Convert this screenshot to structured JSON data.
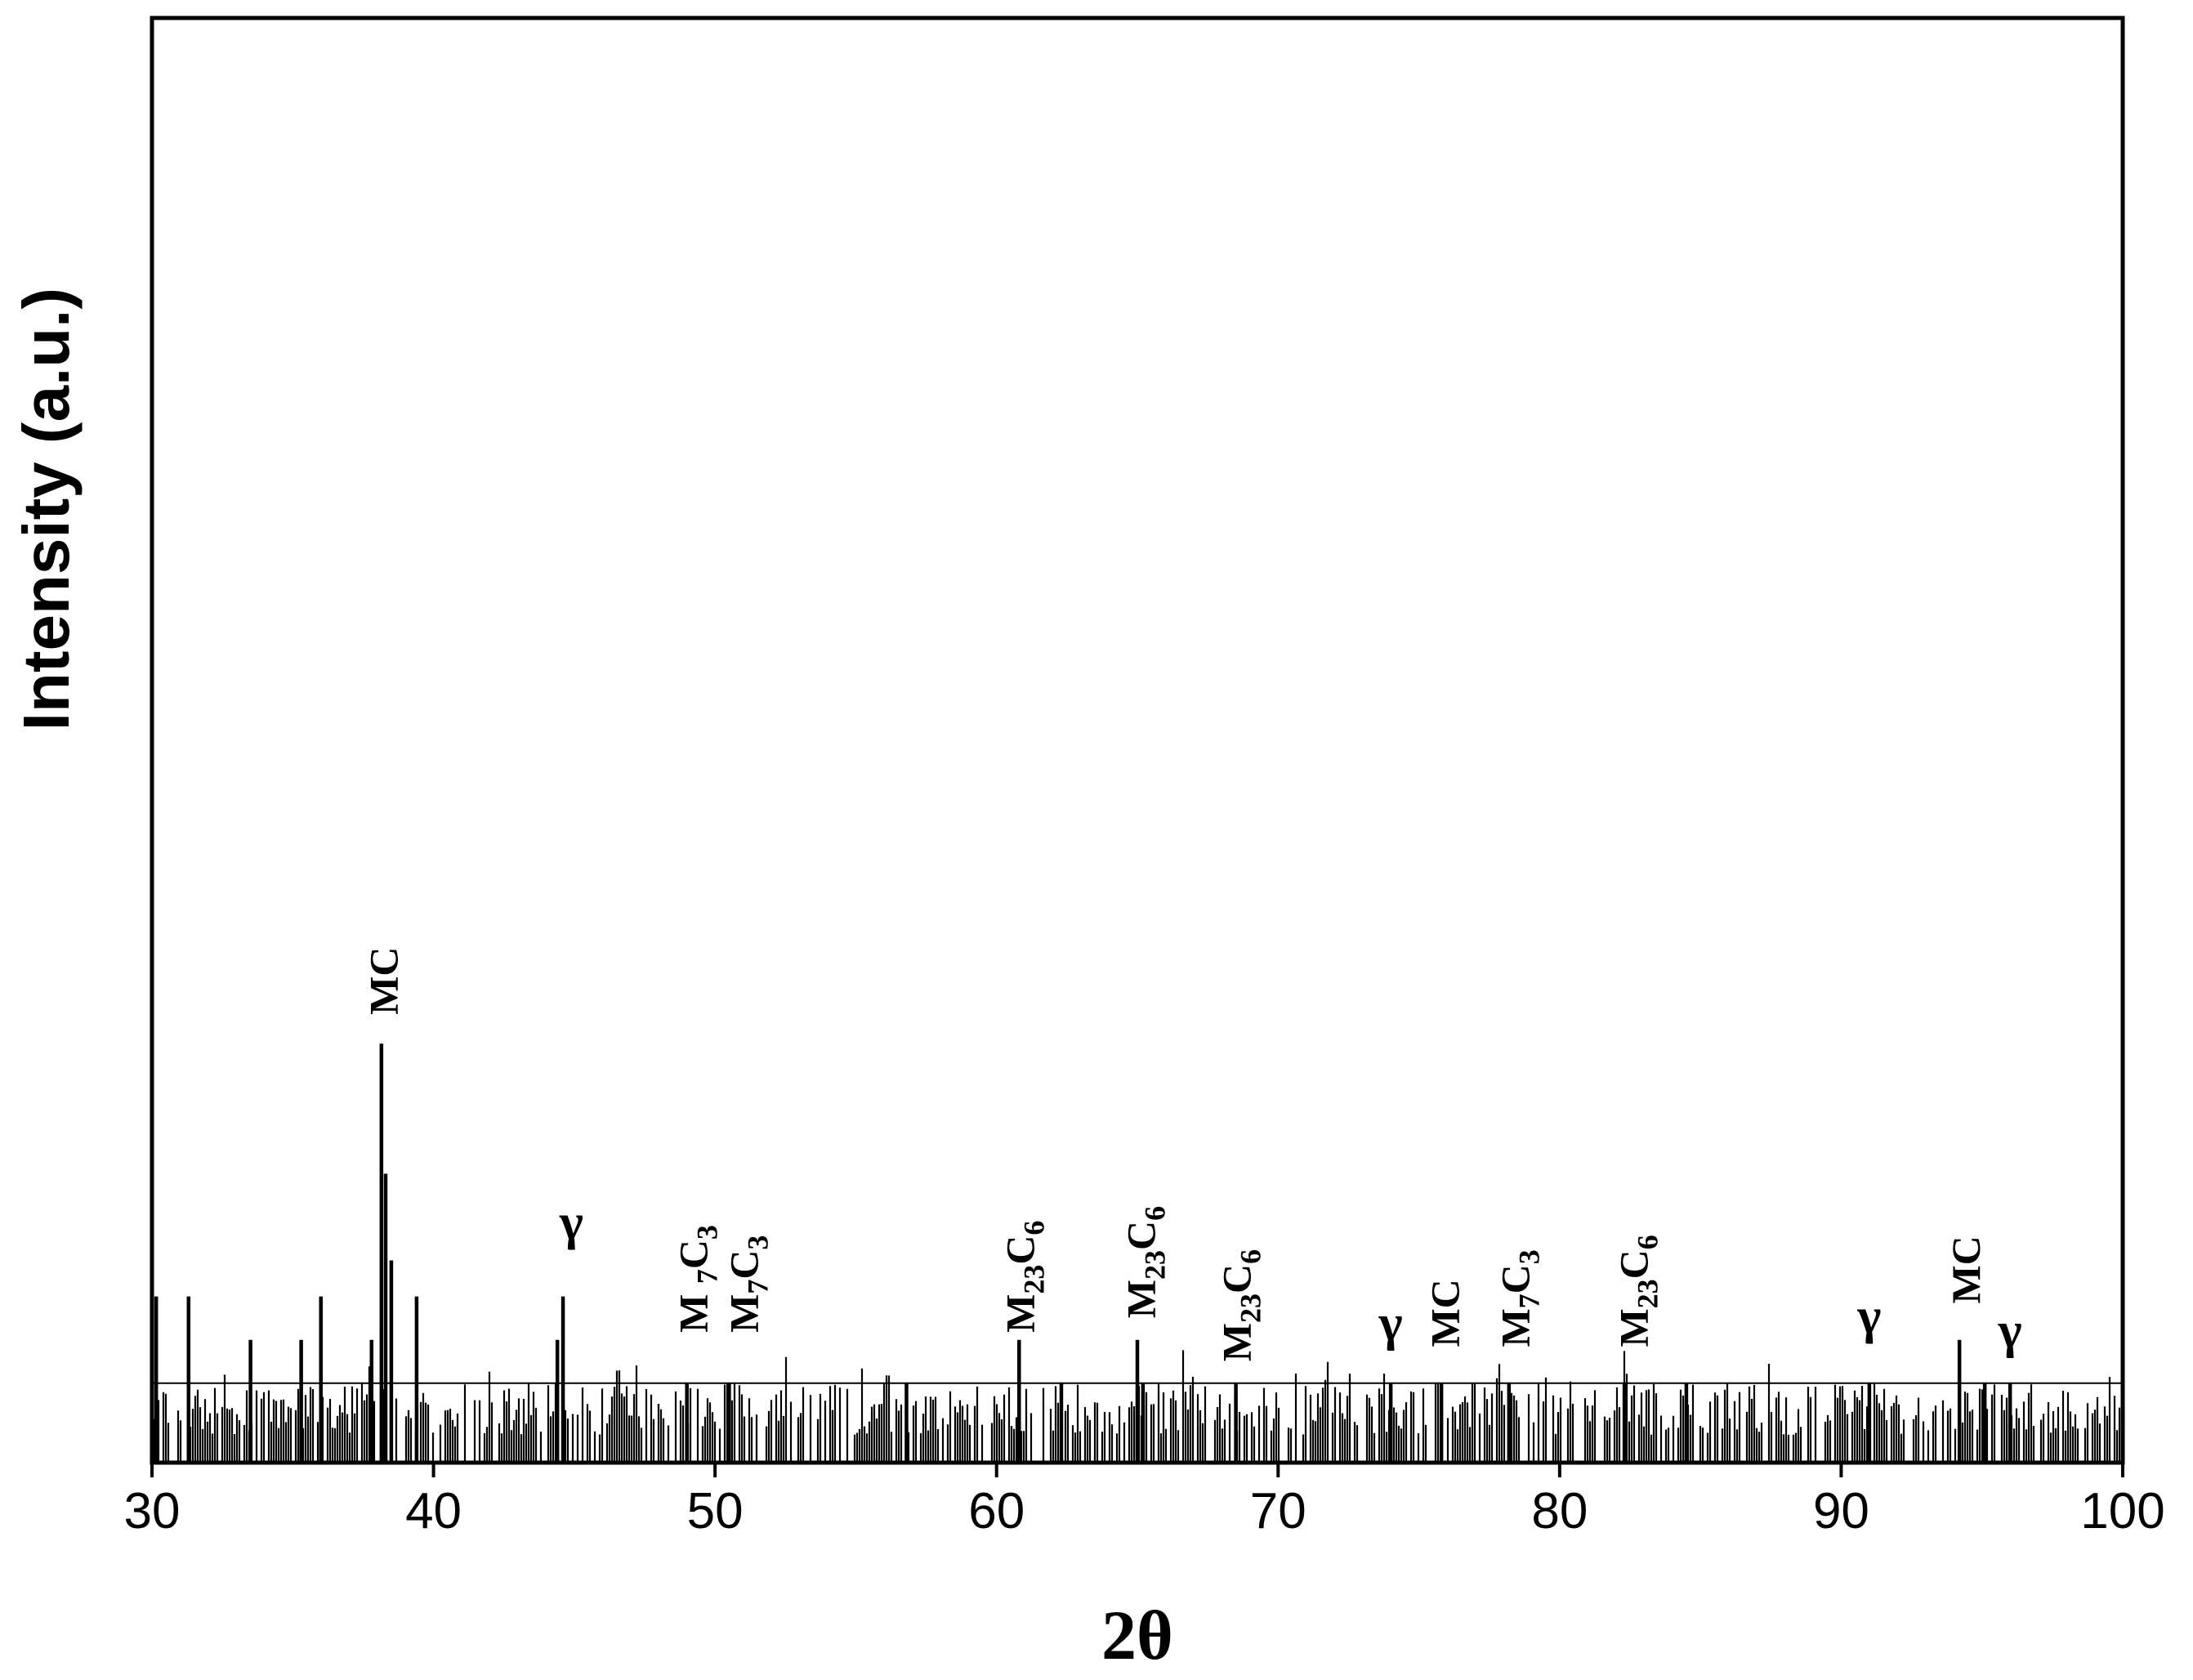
{
  "chart_data": {
    "type": "line",
    "title": "",
    "xlabel": "2θ",
    "ylabel": "Intensity (a.u.)",
    "xlim": [
      30,
      100
    ],
    "x_ticks": [
      30,
      40,
      50,
      60,
      70,
      80,
      90,
      100
    ],
    "y_ticks": [],
    "grid": false,
    "legend": "none",
    "baseline": 0.055,
    "noise_amplitude": 0.03,
    "series": [
      {
        "peaks": [
          {
            "x": 30.15,
            "y": 0.115
          },
          {
            "x": 31.3,
            "y": 0.115
          },
          {
            "x": 33.5,
            "y": 0.085
          },
          {
            "x": 35.3,
            "y": 0.085
          },
          {
            "x": 36.0,
            "y": 0.115
          },
          {
            "x": 37.8,
            "y": 0.085
          },
          {
            "x": 38.15,
            "y": 0.29
          },
          {
            "x": 38.3,
            "y": 0.2
          },
          {
            "x": 38.5,
            "y": 0.14
          },
          {
            "x": 39.4,
            "y": 0.115
          },
          {
            "x": 44.4,
            "y": 0.085
          },
          {
            "x": 44.6,
            "y": 0.115
          },
          {
            "x": 49.0,
            "y": 0.055
          },
          {
            "x": 50.5,
            "y": 0.055
          },
          {
            "x": 56.8,
            "y": 0.055
          },
          {
            "x": 60.8,
            "y": 0.085
          },
          {
            "x": 62.3,
            "y": 0.055
          },
          {
            "x": 65.0,
            "y": 0.085
          },
          {
            "x": 65.2,
            "y": 0.055
          },
          {
            "x": 68.5,
            "y": 0.055
          },
          {
            "x": 74.0,
            "y": 0.055
          },
          {
            "x": 75.8,
            "y": 0.055
          },
          {
            "x": 78.2,
            "y": 0.055
          },
          {
            "x": 82.3,
            "y": 0.055
          },
          {
            "x": 84.5,
            "y": 0.055
          },
          {
            "x": 91.0,
            "y": 0.055
          },
          {
            "x": 94.2,
            "y": 0.085
          },
          {
            "x": 95.1,
            "y": 0.055
          },
          {
            "x": 96.0,
            "y": 0.055
          }
        ]
      }
    ],
    "annotations": [
      {
        "text": "MC",
        "x": 38.2,
        "y": 0.31,
        "rotated": true
      },
      {
        "text": "γ",
        "x": 44.9,
        "y": 0.155,
        "rotated": false
      },
      {
        "text": "M 7C3",
        "x": 49.2,
        "y": 0.09,
        "rotated": true,
        "main": "M ",
        "sub1": "7",
        "mid": "C",
        "sub2": "3"
      },
      {
        "text": "M7C3",
        "x": 51.0,
        "y": 0.09,
        "rotated": true,
        "main": "M",
        "sub1": "7",
        "mid": "C",
        "sub2": "3"
      },
      {
        "text": "M23C6",
        "x": 60.8,
        "y": 0.09,
        "rotated": true,
        "main": "M",
        "sub1": "23",
        "mid": "C",
        "sub2": "6"
      },
      {
        "text": "M23C6",
        "x": 65.1,
        "y": 0.1,
        "rotated": true,
        "main": "M",
        "sub1": "23",
        "mid": "C",
        "sub2": "6"
      },
      {
        "text": "M23C6",
        "x": 68.5,
        "y": 0.07,
        "rotated": true,
        "main": "M",
        "sub1": "23",
        "mid": "C",
        "sub2": "6"
      },
      {
        "text": "γ",
        "x": 74.0,
        "y": 0.085,
        "rotated": false
      },
      {
        "text": "MC",
        "x": 75.9,
        "y": 0.08,
        "rotated": true
      },
      {
        "text": "M7C3",
        "x": 78.4,
        "y": 0.08,
        "rotated": true,
        "main": "M",
        "sub1": "7",
        "mid": "C",
        "sub2": "3"
      },
      {
        "text": "M23C6",
        "x": 82.6,
        "y": 0.08,
        "rotated": true,
        "main": "M",
        "sub1": "23",
        "mid": "C",
        "sub2": "6"
      },
      {
        "text": "γ",
        "x": 91.0,
        "y": 0.09,
        "rotated": false
      },
      {
        "text": "MC",
        "x": 94.4,
        "y": 0.11,
        "rotated": true
      },
      {
        "text": "γ",
        "x": 96.0,
        "y": 0.08,
        "rotated": false
      }
    ]
  }
}
